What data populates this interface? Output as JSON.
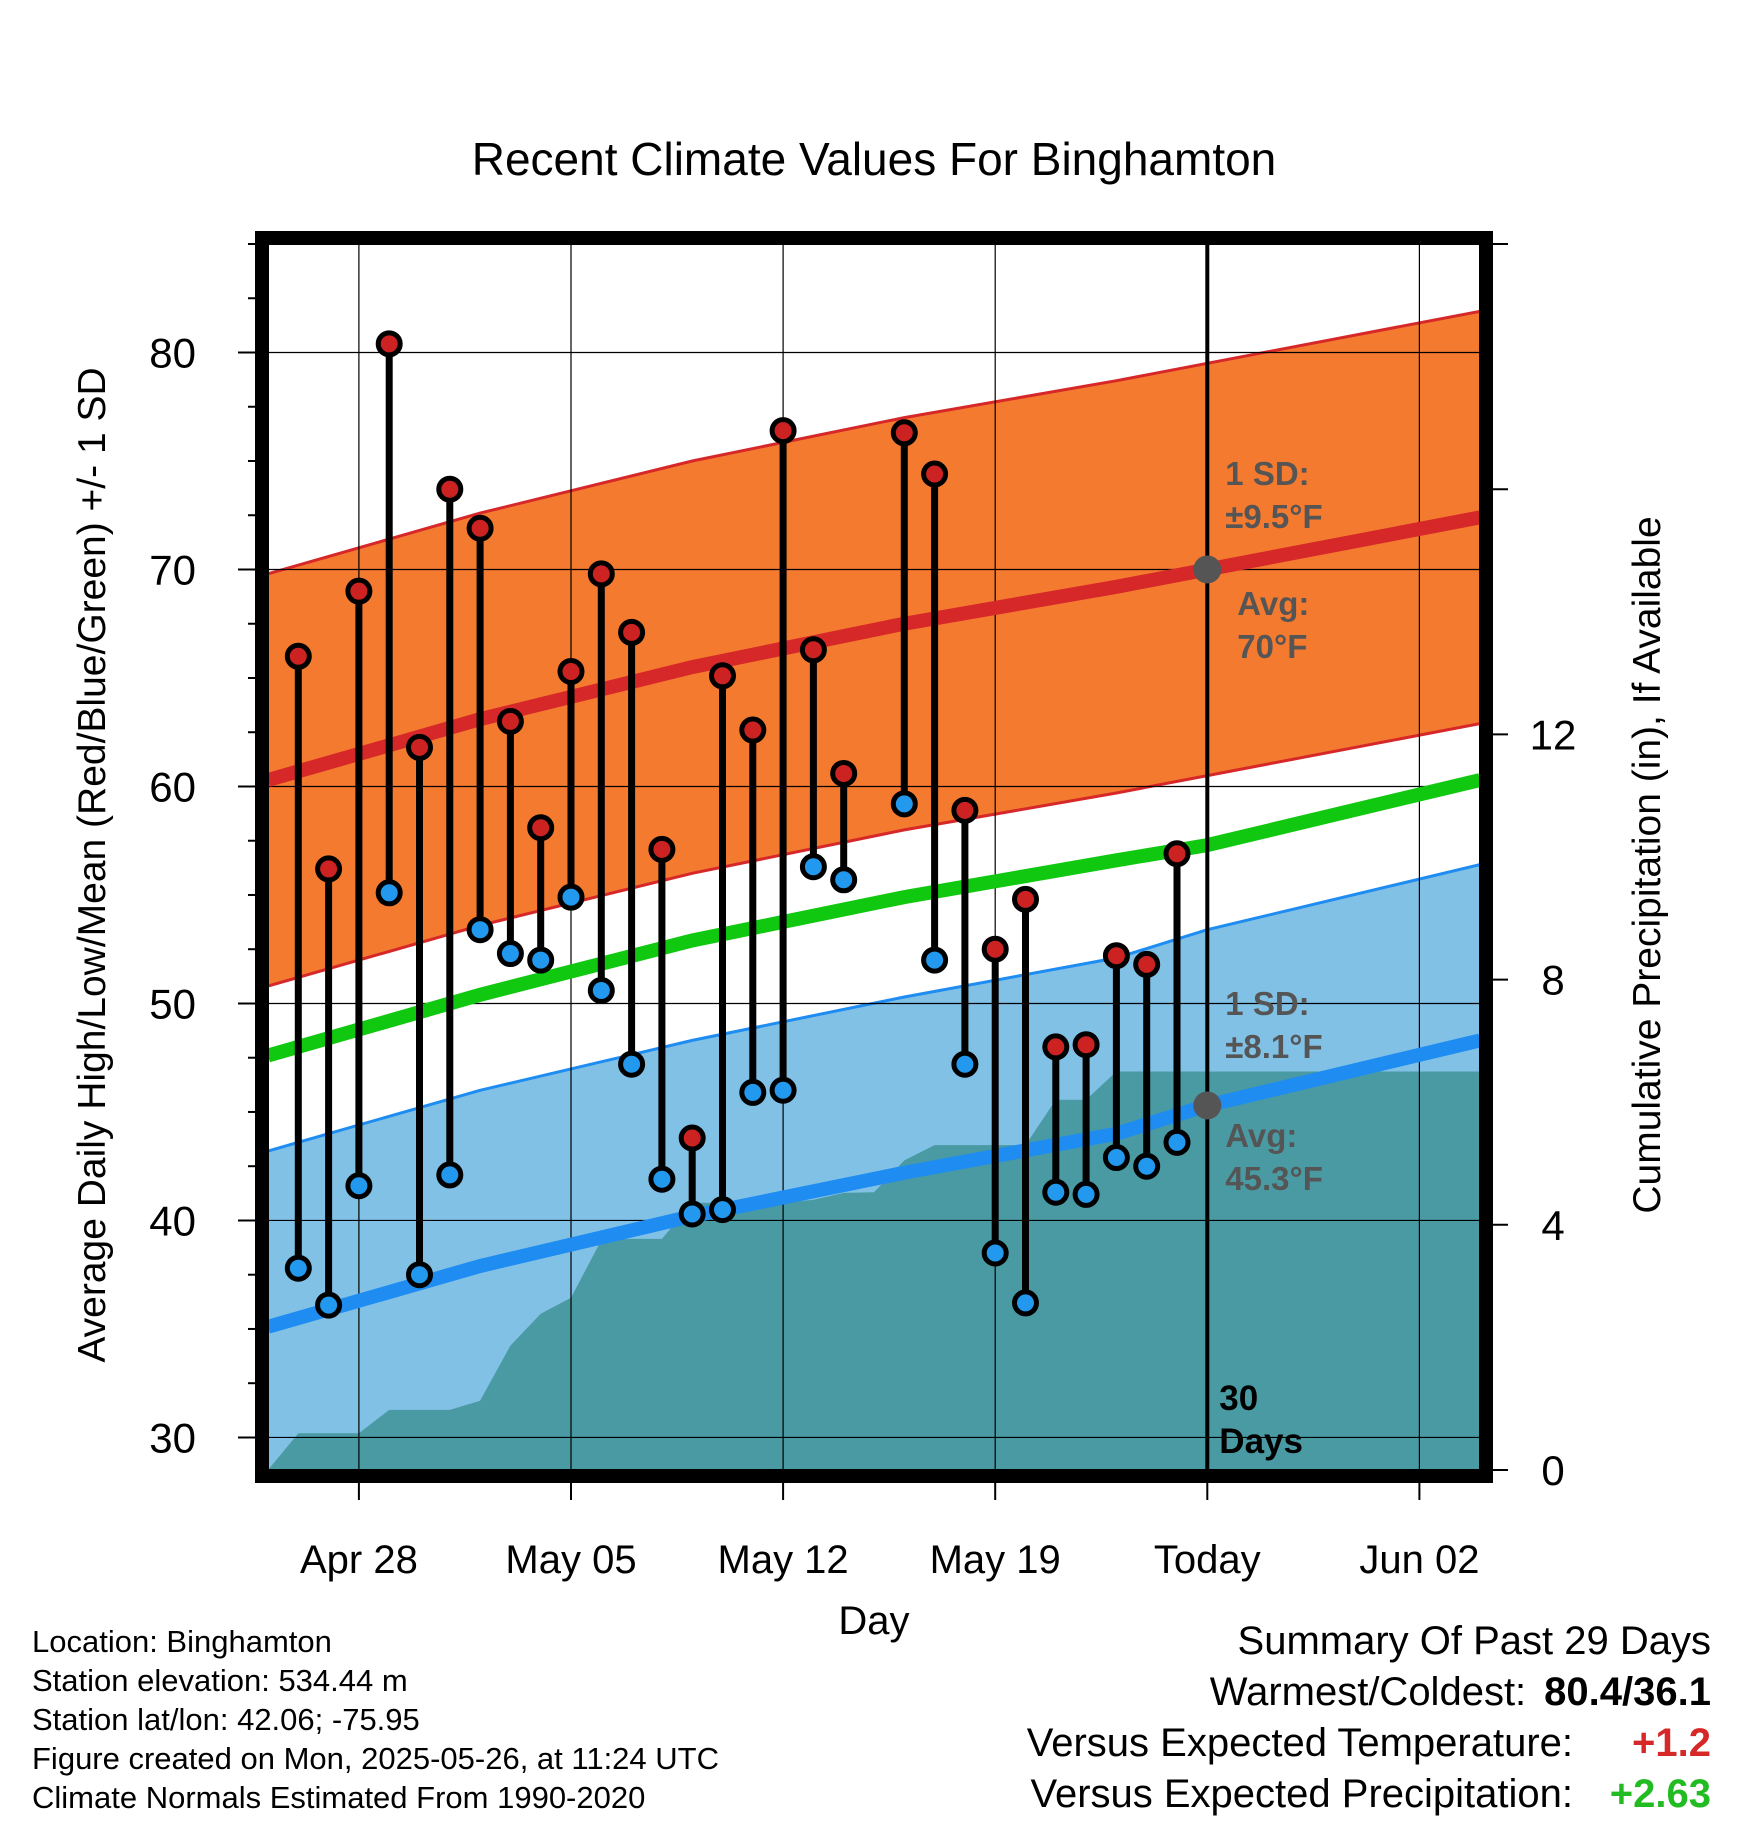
{
  "chart_data": {
    "type": "line",
    "title": "Recent Climate Values For Binghamton",
    "xlabel": "Day",
    "ylabel": "Average Daily High/Low/Mean (Red/Blue/Green) +/- 1 SD",
    "y2label": "Cumulative Precipitation (in), If Available",
    "ylim": [
      28.5,
      85
    ],
    "y_ticks": [
      30,
      40,
      50,
      60,
      70,
      80
    ],
    "y2lim": [
      0,
      20
    ],
    "y2_ticks": [
      0,
      4,
      8,
      12
    ],
    "xlim": [
      "2025-04-25",
      "2025-06-04"
    ],
    "x_ticks": [
      {
        "date": "2025-04-28",
        "label": "Apr 28"
      },
      {
        "date": "2025-05-05",
        "label": "May 05"
      },
      {
        "date": "2025-05-12",
        "label": "May 12"
      },
      {
        "date": "2025-05-19",
        "label": "May 19"
      },
      {
        "date": "2025-05-26",
        "label": "Today"
      },
      {
        "date": "2025-06-02",
        "label": "Jun 02"
      }
    ],
    "grid": true,
    "colors": {
      "high_band": "#f47a30",
      "high_line": "#d62828",
      "low_band": "#82c1e6",
      "low_line": "#1e8cf0",
      "mean_line": "#10c810",
      "precip_area": "#4a9aa4",
      "high_marker": "#cc2222",
      "low_marker": "#2299ee",
      "annotation": "#555555",
      "positive_temp": "#d62828",
      "positive_precip": "#22bb22"
    },
    "normal_high": {
      "name": "Average High",
      "x": [
        "2025-04-25",
        "2025-05-02",
        "2025-05-09",
        "2025-05-16",
        "2025-05-23",
        "2025-05-26",
        "2025-06-04"
      ],
      "y": [
        60.3,
        63.1,
        65.5,
        67.5,
        69.2,
        70.0,
        72.4
      ],
      "sd": 9.5
    },
    "normal_low": {
      "name": "Average Low",
      "x": [
        "2025-04-25",
        "2025-05-02",
        "2025-05-09",
        "2025-05-16",
        "2025-05-23",
        "2025-05-26",
        "2025-06-04"
      ],
      "y": [
        35.1,
        37.9,
        40.2,
        42.2,
        44.0,
        45.3,
        48.3
      ],
      "sd": 8.1
    },
    "normal_mean": {
      "name": "Average Mean",
      "x": [
        "2025-04-25",
        "2025-05-02",
        "2025-05-09",
        "2025-05-16",
        "2025-05-23",
        "2025-05-26",
        "2025-06-04"
      ],
      "y": [
        47.6,
        50.4,
        52.9,
        54.9,
        56.6,
        57.3,
        60.3
      ]
    },
    "daily": {
      "dates": [
        "2025-04-26",
        "2025-04-27",
        "2025-04-28",
        "2025-04-29",
        "2025-04-30",
        "2025-05-01",
        "2025-05-02",
        "2025-05-03",
        "2025-05-04",
        "2025-05-05",
        "2025-05-06",
        "2025-05-07",
        "2025-05-08",
        "2025-05-09",
        "2025-05-10",
        "2025-05-11",
        "2025-05-12",
        "2025-05-13",
        "2025-05-14",
        "2025-05-15",
        "2025-05-16",
        "2025-05-17",
        "2025-05-18",
        "2025-05-19",
        "2025-05-20",
        "2025-05-21",
        "2025-05-22",
        "2025-05-23",
        "2025-05-24",
        "2025-05-25"
      ],
      "high": [
        66.0,
        56.2,
        69.0,
        80.4,
        61.8,
        73.7,
        71.9,
        63.0,
        58.1,
        65.3,
        69.8,
        67.1,
        57.1,
        43.8,
        65.1,
        62.6,
        76.4,
        66.3,
        60.6,
        null,
        76.3,
        74.4,
        58.9,
        52.5,
        54.8,
        48.0,
        48.1,
        52.2,
        51.8,
        56.9
      ],
      "low": [
        37.8,
        36.1,
        41.6,
        55.1,
        37.5,
        42.1,
        53.4,
        52.3,
        52.0,
        54.9,
        50.6,
        47.2,
        41.9,
        40.3,
        40.5,
        45.9,
        46.0,
        56.3,
        55.7,
        null,
        59.2,
        52.0,
        47.2,
        38.5,
        36.2,
        41.3,
        41.2,
        42.9,
        42.5,
        43.6
      ]
    },
    "precipitation": {
      "name": "Cumulative Precipitation",
      "x": [
        "2025-04-25",
        "2025-04-26",
        "2025-04-27",
        "2025-04-28",
        "2025-04-29",
        "2025-04-30",
        "2025-05-01",
        "2025-05-02",
        "2025-05-03",
        "2025-05-04",
        "2025-05-05",
        "2025-05-06",
        "2025-05-07",
        "2025-05-08",
        "2025-05-09",
        "2025-05-10",
        "2025-05-11",
        "2025-05-12",
        "2025-05-13",
        "2025-05-14",
        "2025-05-15",
        "2025-05-16",
        "2025-05-17",
        "2025-05-18",
        "2025-05-19",
        "2025-05-20",
        "2025-05-21",
        "2025-05-22",
        "2025-05-23",
        "2025-05-24",
        "2025-05-25",
        "2025-05-26",
        "2025-06-04"
      ],
      "y": [
        0.0,
        0.6,
        0.6,
        0.6,
        0.98,
        0.98,
        0.98,
        1.13,
        2.03,
        2.55,
        2.81,
        3.75,
        3.77,
        3.77,
        4.36,
        4.36,
        4.36,
        4.36,
        4.41,
        4.52,
        4.53,
        5.05,
        5.3,
        5.3,
        5.3,
        5.3,
        6.04,
        6.04,
        6.5,
        6.5,
        6.5,
        6.5,
        6.5
      ]
    },
    "today_marker": {
      "date": "2025-05-26",
      "label_line1": "30",
      "label_line2": "Days"
    },
    "annotations": {
      "high_sd_line1": "1 SD:",
      "high_sd_line2": "±9.5°F",
      "high_avg_line1": "Avg:",
      "high_avg_line2": "70°F",
      "low_sd_line1": "1 SD:",
      "low_sd_line2": "±8.1°F",
      "low_avg_line1": "Avg:",
      "low_avg_line2": "45.3°F"
    }
  },
  "footer": {
    "location": "Location: Binghamton",
    "elevation": "Station elevation: 534.44 m",
    "latlon": "Station lat/lon: 42.06; -75.95",
    "created": "Figure created on Mon, 2025-05-26, at 11:24 UTC",
    "normals": "Climate Normals Estimated From 1990-2020"
  },
  "summary": {
    "heading": "Summary Of Past 29 Days",
    "warmest_coldest_label": "Warmest/Coldest:",
    "warmest_coldest_value": "80.4/36.1",
    "temp_label": "Versus Expected Temperature:",
    "temp_value": "+1.2",
    "precip_label": "Versus Expected Precipitation:",
    "precip_value": "+2.63"
  }
}
